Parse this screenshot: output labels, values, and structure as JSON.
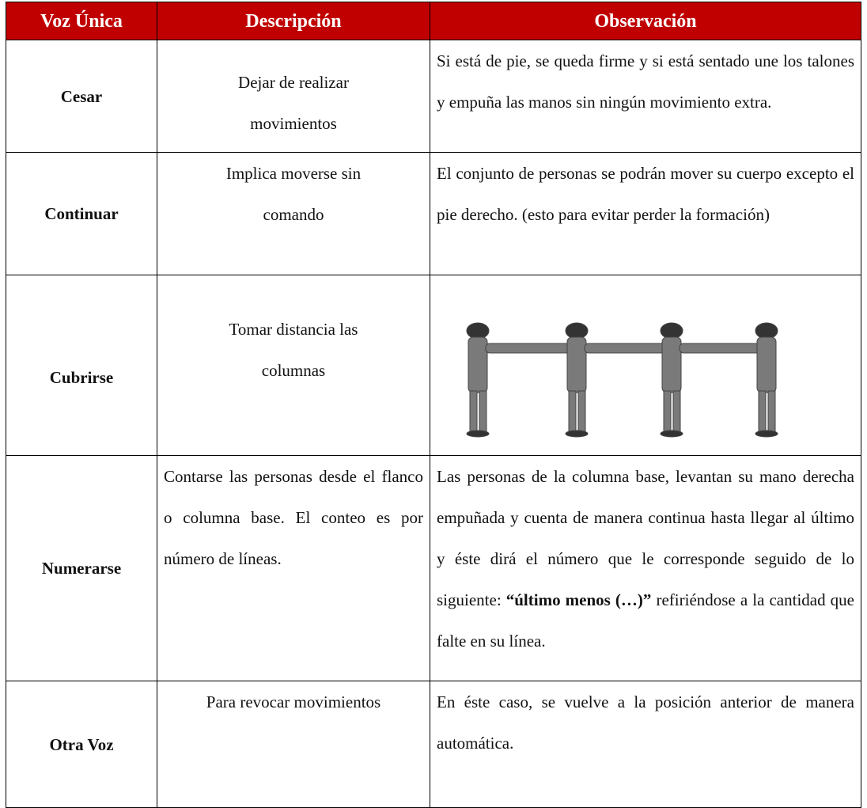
{
  "table": {
    "header": [
      "Voz Única",
      "Descripción",
      "Observación"
    ],
    "rows": [
      {
        "command": "Cesar",
        "description": "Dejar de realizar movimientos",
        "observation": [
          "Si está de pie, se queda firme y si está sentado une los talones y empuña las manos sin ningún movimiento extra."
        ]
      },
      {
        "command": "Continuar",
        "description": "Implica moverse sin comando",
        "observation": [
          "El conjunto de personas se podrán mover su cuerpo excepto el pie derecho. (esto para evitar perder la formación)"
        ]
      },
      {
        "command": "Cubrirse",
        "description": "Tomar distancia las columnas"
      },
      {
        "command": "Numerarse",
        "description": "Contarse las personas desde el flanco o columna base. El conteo es por número de líneas.",
        "observation": [
          "Las personas de la columna base, levantan su mano derecha empuñada y cuenta de manera continua hasta llegar al último y éste dirá el número que le corresponde seguido de lo siguiente: ",
          "“último menos (…)”",
          " refiriéndose a la cantidad que falte en su línea."
        ]
      },
      {
        "command": "Otra Voz",
        "description": "Para revocar movimientos",
        "observation": [
          "En éste caso, se vuelve a la posición anterior de manera automática."
        ]
      }
    ]
  }
}
